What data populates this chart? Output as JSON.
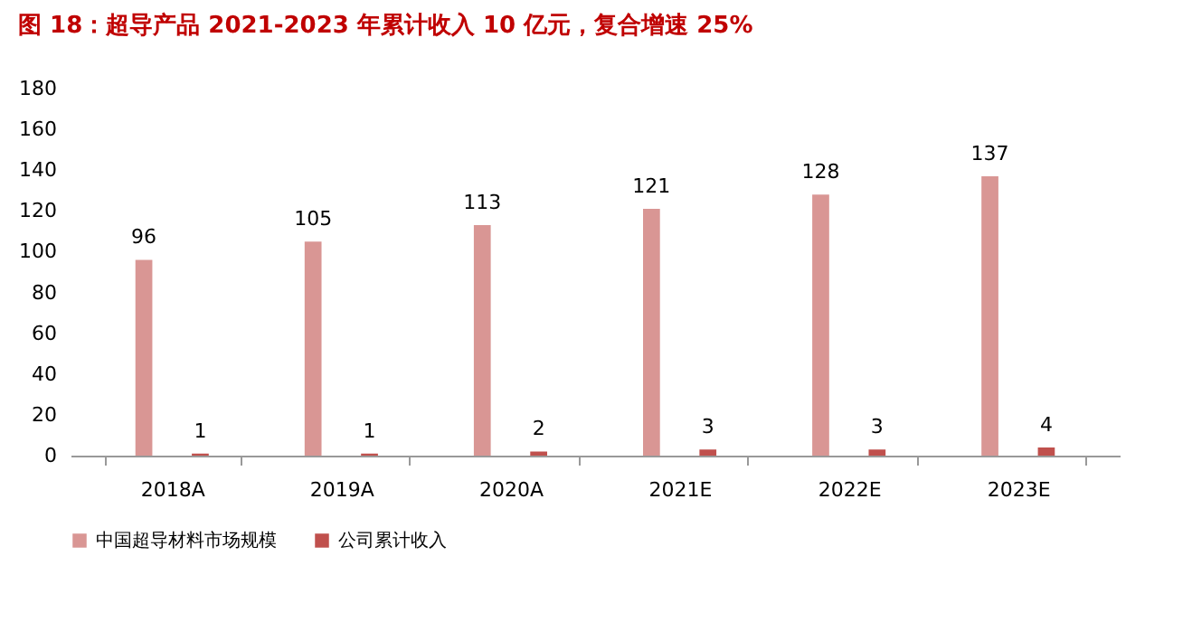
{
  "chart_data": {
    "type": "bar",
    "title": "图 18：超导产品 2021-2023 年累计收入 10 亿元，复合增速 25%",
    "categories": [
      "2018A",
      "2019A",
      "2020A",
      "2021E",
      "2022E",
      "2023E"
    ],
    "series": [
      {
        "name": "中国超导材料市场规模",
        "color": "#d99694",
        "values": [
          96,
          105,
          113,
          121,
          128,
          137
        ]
      },
      {
        "name": "公司累计收入",
        "color": "#c0504d",
        "values": [
          1,
          1,
          2,
          3,
          3,
          4
        ]
      }
    ],
    "ylim": [
      0,
      180
    ],
    "yticks": [
      0,
      20,
      40,
      60,
      80,
      100,
      120,
      140,
      160,
      180
    ],
    "grid": false,
    "legend": "bottom",
    "data_labels": true
  }
}
